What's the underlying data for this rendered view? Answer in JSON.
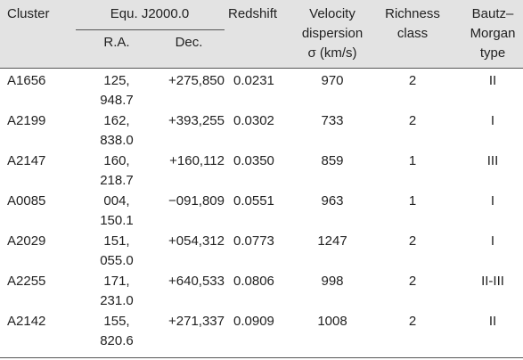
{
  "header": {
    "cluster": "Cluster",
    "equ": "Equ. J2000.0",
    "ra": "R.A.",
    "dec": "Dec.",
    "redshift": "Redshift",
    "velocity": [
      "Velocity",
      "dispersion",
      "σ (km/s)"
    ],
    "richness": [
      "Richness",
      "class"
    ],
    "bautz": [
      "Bautz–",
      "Morgan",
      "type"
    ]
  },
  "table": {
    "rows": [
      [
        "A1656",
        "125, 948.7",
        "+275,850",
        "0.0231",
        "970",
        "2",
        "II"
      ],
      [
        "A2199",
        "162, 838.0",
        "+393,255",
        "0.0302",
        "733",
        "2",
        "I"
      ],
      [
        "A2147",
        "160, 218.7",
        "+160,112",
        "0.0350",
        "859",
        "1",
        "III"
      ],
      [
        "A0085",
        "004, 150.1",
        "−091,809",
        "0.0551",
        "963",
        "1",
        "I"
      ],
      [
        "A2029",
        "151, 055.0",
        "+054,312",
        "0.0773",
        "1247",
        "2",
        "I"
      ],
      [
        "A2255",
        "171, 231.0",
        "+640,533",
        "0.0806",
        "998",
        "2",
        "II-III"
      ],
      [
        "A2142",
        "155, 820.6",
        "+271,337",
        "0.0909",
        "1008",
        "2",
        "II"
      ]
    ]
  }
}
